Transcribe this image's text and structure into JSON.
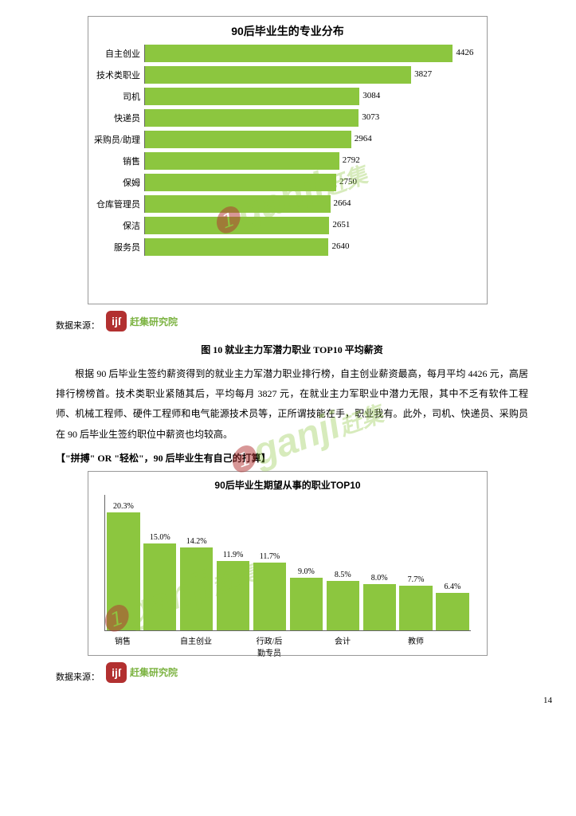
{
  "chart1": {
    "type": "horizontal-bar",
    "title": "90后毕业生的专业分布",
    "bar_color": "#8cc63f",
    "xmax": 4800,
    "background": "#ffffff",
    "grid_color": "#dddddd",
    "axis_color": "#666666",
    "label_fontsize": 11,
    "bars": [
      {
        "label": "自主创业",
        "value": 4426
      },
      {
        "label": "技术类职业",
        "value": 3827
      },
      {
        "label": "司机",
        "value": 3084
      },
      {
        "label": "快递员",
        "value": 3073
      },
      {
        "label": "采购员/助理",
        "value": 2964
      },
      {
        "label": "销售",
        "value": 2792
      },
      {
        "label": "保姆",
        "value": 2750
      },
      {
        "label": "仓库管理员",
        "value": 2664
      },
      {
        "label": "保洁",
        "value": 2651
      },
      {
        "label": "服务员",
        "value": 2640
      }
    ]
  },
  "source_label": "数据来源：",
  "logo_badge": "ĳſ",
  "logo_text": "赶集研究院",
  "caption1": "图 10 就业主力军潜力职业 TOP10 平均薪资",
  "paragraph": "根据 90 后毕业生签约薪资得到的就业主力军潜力职业排行榜，自主创业薪资最高，每月平均 4426 元，高居排行榜榜首。技术类职业紧随其后，平均每月 3827 元，在就业主力军职业中潜力无限，其中不乏有软件工程师、机械工程师、硬件工程师和电气能源技术员等，正所谓技能在手，职业我有。此外，司机、快递员、采购员在 90 后毕业生签约职位中薪资也均较高。",
  "heading": "【\"拼搏\" OR \"轻松\"，90 后毕业生有自己的打算】",
  "chart2": {
    "type": "bar",
    "title": "90后毕业生期望从事的职业TOP10",
    "bar_color": "#8cc63f",
    "ymax": 22,
    "background": "#ffffff",
    "axis_color": "#666666",
    "label_fontsize": 10,
    "bars": [
      {
        "label": "销售",
        "value": 20.3,
        "display": "20.3%"
      },
      {
        "label": "",
        "value": 15.0,
        "display": "15.0%"
      },
      {
        "label": "自主创业",
        "value": 14.2,
        "display": "14.2%"
      },
      {
        "label": "",
        "value": 11.9,
        "display": "11.9%"
      },
      {
        "label": "行政/后勤专员",
        "value": 11.7,
        "display": "11.7%"
      },
      {
        "label": "",
        "value": 9.0,
        "display": "9.0%"
      },
      {
        "label": "会计",
        "value": 8.5,
        "display": "8.5%"
      },
      {
        "label": "",
        "value": 8.0,
        "display": "8.0%"
      },
      {
        "label": "教师",
        "value": 7.7,
        "display": "7.7%"
      },
      {
        "label": "",
        "value": 6.4,
        "display": "6.4%"
      }
    ]
  },
  "watermark_text": "ganji",
  "watermark_cn": "赶集",
  "page_number": "14"
}
